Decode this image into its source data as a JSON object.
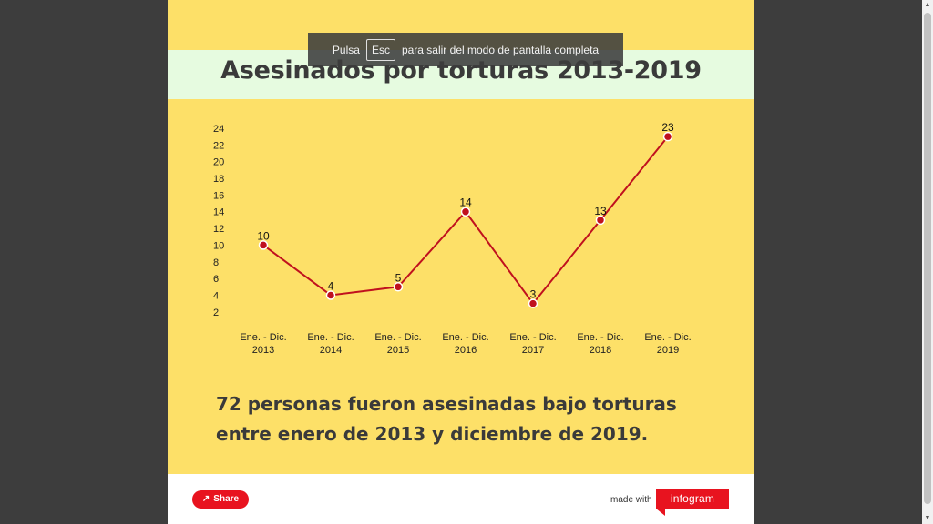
{
  "toast": {
    "before": "Pulsa",
    "key": "Esc",
    "after": "para salir del modo de pantalla completa"
  },
  "title": "Asesinados por torturas 2013-2019",
  "summary": "72 personas fueron asesinadas bajo torturas entre enero de 2013 y diciembre de 2019.",
  "footer": {
    "share_label": "Share",
    "made_with": "made with",
    "brand": "infogram"
  },
  "colors": {
    "background": "#fde068",
    "title_band": "#e6fbe0",
    "line": "#c0111e",
    "accent": "#e8131f"
  },
  "chart_data": {
    "type": "line",
    "title": "Asesinados por torturas 2013-2019",
    "categories": [
      [
        "Ene. - Dic.",
        "2013"
      ],
      [
        "Ene. - Dic.",
        "2014"
      ],
      [
        "Ene. - Dic.",
        "2015"
      ],
      [
        "Ene. - Dic.",
        "2016"
      ],
      [
        "Ene. - Dic.",
        "2017"
      ],
      [
        "Ene. - Dic.",
        "2018"
      ],
      [
        "Ene. - Dic.",
        "2019"
      ]
    ],
    "series": [
      {
        "values": [
          10,
          4,
          5,
          14,
          3,
          13,
          23
        ]
      }
    ],
    "y_ticks": [
      2,
      4,
      6,
      8,
      10,
      12,
      14,
      16,
      18,
      20,
      22,
      24
    ],
    "ylim": [
      1,
      24
    ],
    "grid": false,
    "data_labels": true
  }
}
